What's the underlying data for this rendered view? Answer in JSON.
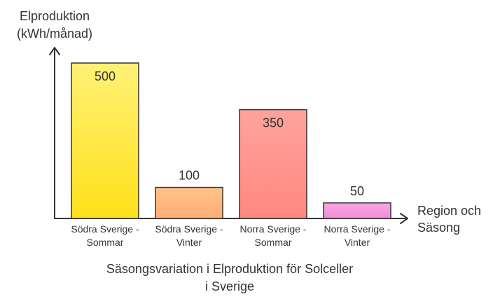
{
  "chart_data": {
    "type": "bar",
    "title": "Säsongsvariation i Elproduktion för Solceller i Sverige",
    "title_lines": [
      "Säsongsvariation i Elproduktion för Solceller",
      "i Sverige"
    ],
    "ylabel_lines": [
      "Elproduktion",
      "(kWh/månad)"
    ],
    "xlabel_lines": [
      "Region och",
      "Säsong"
    ],
    "categories": [
      [
        "Södra Sverige -",
        "Sommar"
      ],
      [
        "Södra Sverige -",
        "Vinter"
      ],
      [
        "Norra Sverige -",
        "Sommar"
      ],
      [
        "Norra Sverige -",
        "Vinter"
      ]
    ],
    "values": [
      500,
      100,
      350,
      50
    ],
    "value_labels": [
      "500",
      "100",
      "350",
      "50"
    ],
    "ylim": [
      0,
      500
    ],
    "grid": false,
    "legend": "none",
    "bar_colors": [
      {
        "top": "#FFF176",
        "bottom": "#FFE01A",
        "stroke": "#333333"
      },
      {
        "top": "#FFC28A",
        "bottom": "#FFAE72",
        "stroke": "#333333"
      },
      {
        "top": "#FFA39C",
        "bottom": "#FF8880",
        "stroke": "#333333"
      },
      {
        "top": "#F8A8E0",
        "bottom": "#F28CD8",
        "stroke": "#333333"
      }
    ]
  }
}
